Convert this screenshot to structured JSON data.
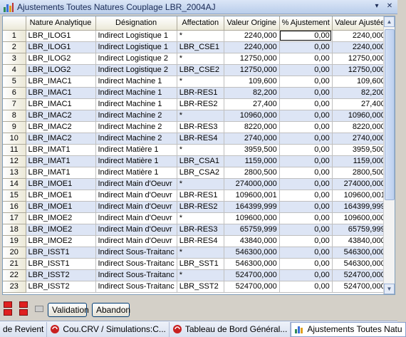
{
  "window": {
    "title": "Ajustements Toutes Natures Couplage LBR_2004AJ",
    "pin_glyph": "▾",
    "close_glyph": "✕"
  },
  "columns": [
    "",
    "Nature Analytique",
    "Désignation",
    "Affectation",
    "Valeur Origine",
    "% Ajustement",
    "Valeur Ajustée"
  ],
  "rows": [
    [
      "1",
      "LBR_ILOG1",
      "Indirect Logistique 1",
      "*",
      "2240,000",
      "0,00",
      "2240,000"
    ],
    [
      "2",
      "LBR_ILOG1",
      "Indirect Logistique 1",
      "LBR_CSE1",
      "2240,000",
      "0,00",
      "2240,000"
    ],
    [
      "3",
      "LBR_ILOG2",
      "Indirect Logistique 2",
      "*",
      "12750,000",
      "0,00",
      "12750,000"
    ],
    [
      "4",
      "LBR_ILOG2",
      "Indirect Logistique 2",
      "LBR_CSE2",
      "12750,000",
      "0,00",
      "12750,000"
    ],
    [
      "5",
      "LBR_IMAC1",
      "Indirect Machine 1",
      "*",
      "109,600",
      "0,00",
      "109,600"
    ],
    [
      "6",
      "LBR_IMAC1",
      "Indirect Machine 1",
      "LBR-RES1",
      "82,200",
      "0,00",
      "82,200"
    ],
    [
      "7",
      "LBR_IMAC1",
      "Indirect Machine 1",
      "LBR-RES2",
      "27,400",
      "0,00",
      "27,400"
    ],
    [
      "8",
      "LBR_IMAC2",
      "Indirect Machine 2",
      "*",
      "10960,000",
      "0,00",
      "10960,000"
    ],
    [
      "9",
      "LBR_IMAC2",
      "Indirect Machine 2",
      "LBR-RES3",
      "8220,000",
      "0,00",
      "8220,000"
    ],
    [
      "10",
      "LBR_IMAC2",
      "Indirect Machine 2",
      "LBR-RES4",
      "2740,000",
      "0,00",
      "2740,000"
    ],
    [
      "11",
      "LBR_IMAT1",
      "Indirect Matière 1",
      "*",
      "3959,500",
      "0,00",
      "3959,500"
    ],
    [
      "12",
      "LBR_IMAT1",
      "Indirect Matière 1",
      "LBR_CSA1",
      "1159,000",
      "0,00",
      "1159,000"
    ],
    [
      "13",
      "LBR_IMAT1",
      "Indirect Matière 1",
      "LBR_CSA2",
      "2800,500",
      "0,00",
      "2800,500"
    ],
    [
      "14",
      "LBR_IMOE1",
      "Indirect Main d'Oeuvr",
      "*",
      "274000,000",
      "0,00",
      "274000,000"
    ],
    [
      "15",
      "LBR_IMOE1",
      "Indirect Main d'Oeuvr",
      "LBR-RES1",
      "109600,001",
      "0,00",
      "109600,001"
    ],
    [
      "16",
      "LBR_IMOE1",
      "Indirect Main d'Oeuvr",
      "LBR-RES2",
      "164399,999",
      "0,00",
      "164399,999"
    ],
    [
      "17",
      "LBR_IMOE2",
      "Indirect Main d'Oeuvr",
      "*",
      "109600,000",
      "0,00",
      "109600,000"
    ],
    [
      "18",
      "LBR_IMOE2",
      "Indirect Main d'Oeuvr",
      "LBR-RES3",
      "65759,999",
      "0,00",
      "65759,999"
    ],
    [
      "19",
      "LBR_IMOE2",
      "Indirect Main d'Oeuvr",
      "LBR-RES4",
      "43840,000",
      "0,00",
      "43840,000"
    ],
    [
      "20",
      "LBR_ISST1",
      "Indirect Sous-Traitanc",
      "*",
      "546300,000",
      "0,00",
      "546300,000"
    ],
    [
      "21",
      "LBR_ISST1",
      "Indirect Sous-Traitanc",
      "LBR_SST1",
      "546300,000",
      "0,00",
      "546300,000"
    ],
    [
      "22",
      "LBR_ISST2",
      "Indirect Sous-Traitanc",
      "*",
      "524700,000",
      "0,00",
      "524700,000"
    ],
    [
      "23",
      "LBR_ISST2",
      "Indirect Sous-Traitanc",
      "LBR_SST2",
      "524700,000",
      "0,00",
      "524700,000"
    ]
  ],
  "buttons": {
    "validate": "Validation",
    "cancel": "Abandon"
  },
  "taskbar": [
    {
      "label": "de Revient",
      "icon": "none"
    },
    {
      "label": "Cou.CRV / Simulations:C...",
      "icon": "red-circle-icon"
    },
    {
      "label": "Tableau de Bord Général...",
      "icon": "red-circle-icon"
    },
    {
      "label": "Ajustements Toutes Natu",
      "icon": "bar-chart-icon"
    }
  ],
  "colors": {
    "alt_row": "#dde5f5",
    "title_bar": "#b9cdea",
    "border": "#7f9db9"
  }
}
